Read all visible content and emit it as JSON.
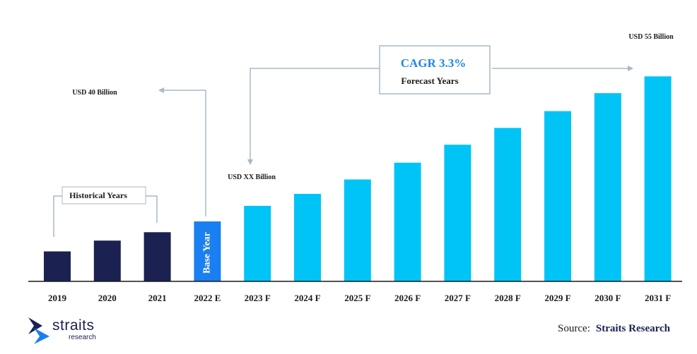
{
  "chart_data": {
    "type": "bar",
    "categories": [
      "2019",
      "2020",
      "2021",
      "2022 E",
      "2023 F",
      "2024 F",
      "2025 F",
      "2026 F",
      "2027 F",
      "2028 F",
      "2029 F",
      "2030 F",
      "2031 F"
    ],
    "values": [
      12.5,
      17,
      20.5,
      25,
      31.5,
      36.5,
      42.5,
      49.5,
      57,
      64,
      71,
      78.5,
      85.5
    ],
    "ylim": [
      0,
      100
    ],
    "grid": false,
    "colors": {
      "historical": "#1b2150",
      "base": "#1a7ff0",
      "forecast": "#00c4f5",
      "connector": "#a8b8c8"
    },
    "annotations": {
      "start_value": "USD 40 Billion",
      "base_value": "USD XX Billion",
      "end_value": "USD 55 Billion",
      "cagr": "CAGR 3.3%",
      "forecast_label": "Forecast Years",
      "historical_label": "Historical Years",
      "base_year_label": "Base Year"
    }
  },
  "footer": {
    "logo_name": "straits",
    "logo_sub": "research",
    "logo_icon": "straits-chevron-icon",
    "source_label": "Source:",
    "source_name": "Straits Research"
  }
}
